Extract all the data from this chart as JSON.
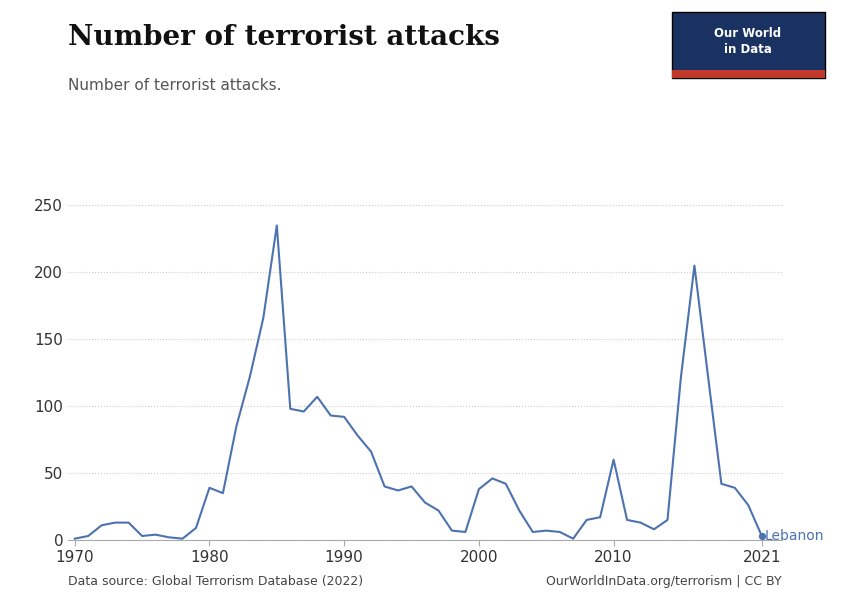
{
  "title": "Number of terrorist attacks",
  "subtitle": "Number of terrorist attacks.",
  "source_left": "Data source: Global Terrorism Database (2022)",
  "source_right": "OurWorldInData.org/terrorism | CC BY",
  "label": "Lebanon",
  "line_color": "#4C72B0",
  "background_color": "#ffffff",
  "ylim": [
    0,
    260
  ],
  "yticks": [
    0,
    50,
    100,
    150,
    200,
    250
  ],
  "xlim": [
    1969.5,
    2022.5
  ],
  "xticks": [
    1970,
    1980,
    1990,
    2000,
    2010,
    2021
  ],
  "years": [
    1970,
    1971,
    1972,
    1973,
    1974,
    1975,
    1976,
    1977,
    1978,
    1979,
    1980,
    1981,
    1982,
    1983,
    1984,
    1985,
    1986,
    1987,
    1988,
    1989,
    1990,
    1991,
    1992,
    1993,
    1994,
    1995,
    1996,
    1997,
    1998,
    1999,
    2000,
    2001,
    2002,
    2003,
    2004,
    2005,
    2006,
    2007,
    2008,
    2009,
    2010,
    2011,
    2012,
    2013,
    2014,
    2015,
    2016,
    2017,
    2018,
    2019,
    2020,
    2021
  ],
  "values": [
    1,
    3,
    11,
    13,
    13,
    3,
    4,
    2,
    1,
    9,
    39,
    35,
    85,
    122,
    166,
    235,
    98,
    96,
    107,
    93,
    92,
    78,
    66,
    40,
    37,
    40,
    28,
    22,
    7,
    6,
    38,
    46,
    42,
    22,
    6,
    7,
    6,
    1,
    15,
    17,
    60,
    15,
    13,
    8,
    15,
    122,
    205,
    123,
    42,
    39,
    26,
    3
  ],
  "logo_bg": "#1a3261",
  "logo_red": "#c0392b",
  "logo_text": "Our World\nin Data",
  "title_fontsize": 20,
  "subtitle_fontsize": 11,
  "tick_fontsize": 11,
  "source_fontsize": 9,
  "label_fontsize": 10,
  "grid_color": "#cccccc",
  "grid_linestyle": "dotted",
  "grid_linewidth": 0.8,
  "line_width": 1.5
}
